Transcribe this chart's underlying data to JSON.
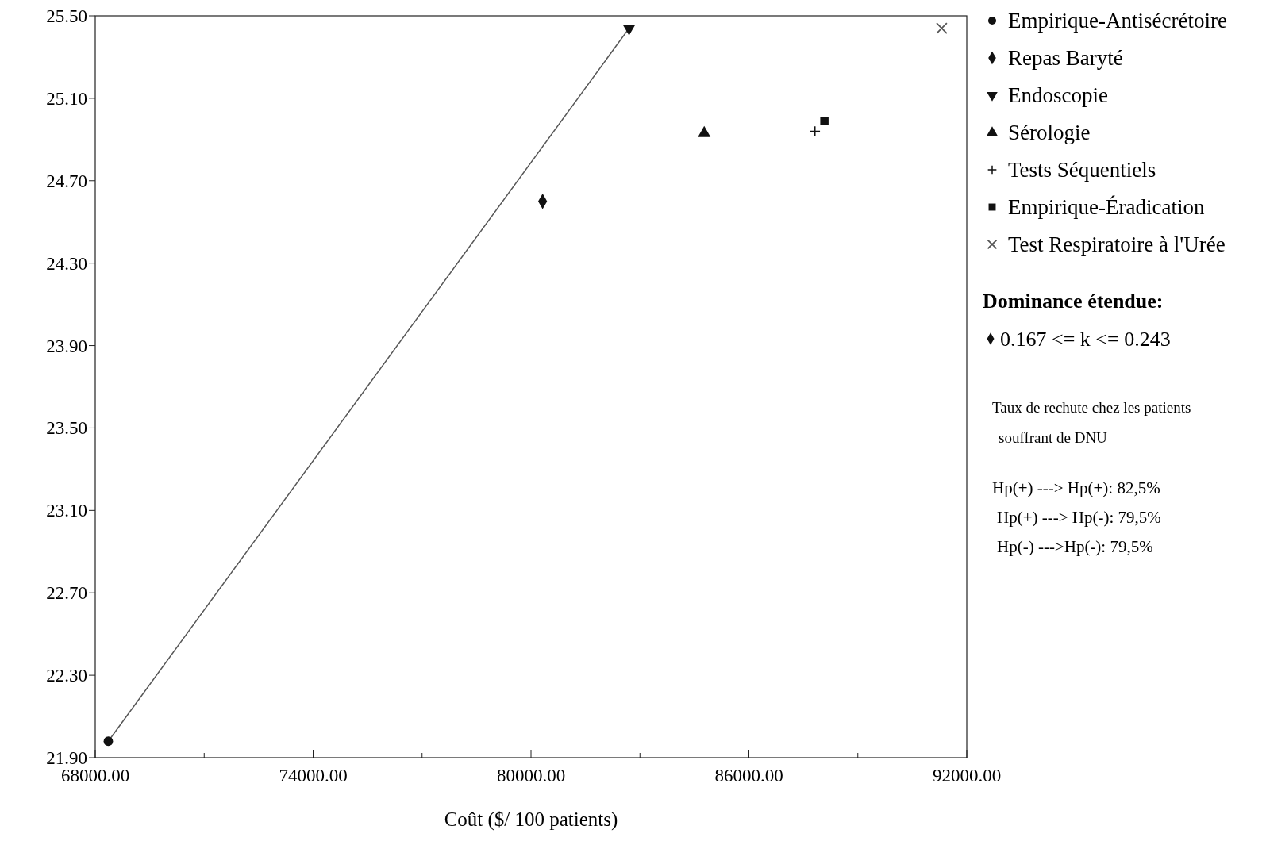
{
  "chart_data": {
    "type": "scatter",
    "xlabel": "Coût ($/ 100 patients)",
    "xlim": [
      68000,
      92000
    ],
    "ylim": [
      21.9,
      25.5
    ],
    "xticks": [
      {
        "value": 68000,
        "label": "68000.00"
      },
      {
        "value": 71000,
        "label": null
      },
      {
        "value": 74000,
        "label": "74000.00"
      },
      {
        "value": 77000,
        "label": null
      },
      {
        "value": 80000,
        "label": "80000.00"
      },
      {
        "value": 83000,
        "label": null
      },
      {
        "value": 86000,
        "label": "86000.00"
      },
      {
        "value": 89000,
        "label": null
      },
      {
        "value": 92000,
        "label": "92000.00"
      }
    ],
    "yticks": [
      {
        "value": 21.9,
        "label": "21.90"
      },
      {
        "value": 22.3,
        "label": "22.30"
      },
      {
        "value": 22.7,
        "label": "22.70"
      },
      {
        "value": 23.1,
        "label": "23.10"
      },
      {
        "value": 23.5,
        "label": "23.50"
      },
      {
        "value": 23.9,
        "label": "23.90"
      },
      {
        "value": 24.3,
        "label": "24.30"
      },
      {
        "value": 24.7,
        "label": "24.70"
      },
      {
        "value": 25.1,
        "label": "25.10"
      },
      {
        "value": 25.5,
        "label": "25.50"
      }
    ],
    "grid": false,
    "legend": "right",
    "series": [
      {
        "type": "line",
        "color": "#555555",
        "x": [
          68360,
          82700
        ],
        "values": [
          21.98,
          25.44
        ],
        "marker": "none"
      },
      {
        "name": "Empirique-Antisécrétoire",
        "color": "#111111",
        "x": [
          68360
        ],
        "values": [
          21.98
        ],
        "marker": "circle"
      },
      {
        "name": "Repas Baryté",
        "color": "#111111",
        "x": [
          80320
        ],
        "values": [
          24.6
        ],
        "marker": "diamond"
      },
      {
        "name": "Endoscopie",
        "color": "#111111",
        "x": [
          82700
        ],
        "values": [
          25.44
        ],
        "marker": "triangle-down"
      },
      {
        "name": "Sérologie",
        "color": "#111111",
        "x": [
          84770
        ],
        "values": [
          24.93
        ],
        "marker": "triangle"
      },
      {
        "name": "Tests Séquentiels",
        "color": "#111111",
        "x": [
          87820
        ],
        "values": [
          24.94
        ],
        "marker": "plus"
      },
      {
        "name": "Empirique-Éradication",
        "color": "#111111",
        "x": [
          88080
        ],
        "values": [
          24.99
        ],
        "marker": "square"
      },
      {
        "name": "Test Respiratoire à l'Urée",
        "color": "#555555",
        "x": [
          91310
        ],
        "values": [
          25.44
        ],
        "marker": "cross"
      }
    ],
    "annotations": [
      "Dominance étendue:",
      "0.167 <= k <= 0.243",
      "Taux de rechute chez les patients",
      "souffrant de DNU",
      "Hp(+) ---> Hp(+): 82,5%",
      "Hp(+) ---> Hp(-): 79,5%",
      "Hp(-) --->Hp(-): 79,5%"
    ]
  }
}
